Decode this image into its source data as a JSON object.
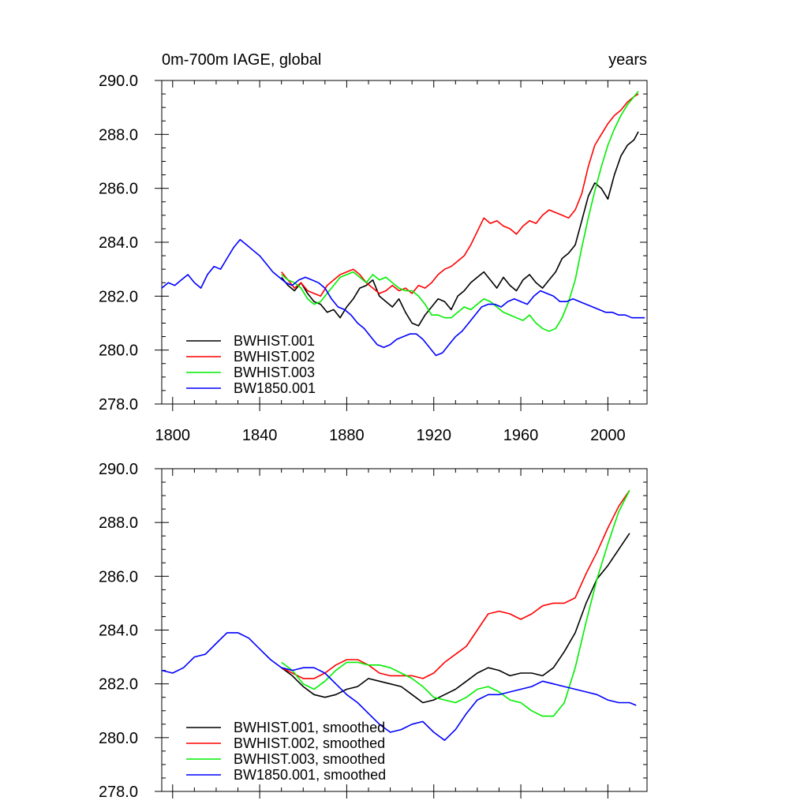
{
  "chart_data": [
    {
      "type": "line",
      "title_left": "0m-700m IAGE, global",
      "title_right": "years",
      "xlim": [
        1795,
        2018
      ],
      "ylim": [
        278.0,
        290.0
      ],
      "x_ticks": [
        "1800",
        "1840",
        "1880",
        "1920",
        "1960",
        "2000"
      ],
      "y_ticks": [
        "278.0",
        "280.0",
        "282.0",
        "284.0",
        "286.0",
        "288.0",
        "290.0"
      ],
      "grid": false,
      "legend_position": "bottom-left",
      "series": [
        {
          "name": "BWHIST.001",
          "color": "#000000",
          "x": [
            1850,
            1853,
            1856,
            1859,
            1862,
            1865,
            1868,
            1871,
            1874,
            1877,
            1880,
            1883,
            1886,
            1889,
            1892,
            1895,
            1898,
            1901,
            1904,
            1907,
            1910,
            1913,
            1916,
            1919,
            1922,
            1925,
            1928,
            1931,
            1934,
            1937,
            1940,
            1943,
            1946,
            1949,
            1952,
            1955,
            1958,
            1961,
            1964,
            1967,
            1970,
            1973,
            1976,
            1979,
            1982,
            1985,
            1988,
            1991,
            1994,
            1997,
            2000,
            2003,
            2006,
            2009,
            2012,
            2014
          ],
          "y": [
            282.7,
            282.4,
            282.2,
            282.5,
            282.1,
            281.8,
            281.7,
            281.4,
            281.5,
            281.2,
            281.6,
            281.9,
            282.3,
            282.4,
            282.6,
            282.0,
            281.8,
            281.6,
            281.9,
            281.4,
            281.0,
            280.9,
            281.3,
            281.6,
            281.9,
            281.8,
            281.5,
            282.0,
            282.2,
            282.5,
            282.7,
            282.9,
            282.6,
            282.3,
            282.7,
            282.4,
            282.2,
            282.6,
            282.8,
            282.5,
            282.3,
            282.6,
            282.9,
            283.4,
            283.6,
            283.9,
            284.8,
            285.7,
            286.2,
            286.0,
            285.6,
            286.5,
            287.2,
            287.6,
            287.8,
            288.1
          ]
        },
        {
          "name": "BWHIST.002",
          "color": "#ff0000",
          "x": [
            1850,
            1853,
            1856,
            1859,
            1862,
            1865,
            1868,
            1871,
            1874,
            1877,
            1880,
            1883,
            1886,
            1889,
            1892,
            1895,
            1898,
            1901,
            1904,
            1907,
            1910,
            1913,
            1916,
            1919,
            1922,
            1925,
            1928,
            1931,
            1934,
            1937,
            1940,
            1943,
            1946,
            1949,
            1952,
            1955,
            1958,
            1961,
            1964,
            1967,
            1970,
            1973,
            1976,
            1979,
            1982,
            1985,
            1988,
            1991,
            1994,
            1997,
            2000,
            2003,
            2006,
            2009,
            2012,
            2014
          ],
          "y": [
            282.9,
            282.6,
            282.3,
            282.5,
            282.2,
            282.1,
            282.0,
            282.4,
            282.6,
            282.8,
            282.9,
            283.0,
            282.8,
            282.5,
            282.3,
            282.1,
            282.2,
            282.4,
            282.2,
            282.3,
            282.1,
            282.4,
            282.3,
            282.5,
            282.8,
            283.0,
            283.1,
            283.3,
            283.5,
            283.9,
            284.4,
            284.9,
            284.7,
            284.8,
            284.6,
            284.5,
            284.3,
            284.6,
            284.8,
            284.7,
            285.0,
            285.2,
            285.1,
            285.0,
            284.9,
            285.2,
            285.8,
            286.8,
            287.6,
            288.0,
            288.4,
            288.7,
            288.9,
            289.2,
            289.4,
            289.5
          ]
        },
        {
          "name": "BWHIST.003",
          "color": "#00ee00",
          "x": [
            1850,
            1853,
            1856,
            1859,
            1862,
            1865,
            1868,
            1871,
            1874,
            1877,
            1880,
            1883,
            1886,
            1889,
            1892,
            1895,
            1898,
            1901,
            1904,
            1907,
            1910,
            1913,
            1916,
            1919,
            1922,
            1925,
            1928,
            1931,
            1934,
            1937,
            1940,
            1943,
            1946,
            1949,
            1952,
            1955,
            1958,
            1961,
            1964,
            1967,
            1970,
            1973,
            1976,
            1979,
            1982,
            1985,
            1988,
            1991,
            1994,
            1997,
            2000,
            2003,
            2006,
            2009,
            2012,
            2014
          ],
          "y": [
            282.8,
            282.6,
            282.5,
            282.3,
            281.9,
            281.7,
            281.8,
            282.1,
            282.4,
            282.7,
            282.8,
            282.9,
            282.7,
            282.5,
            282.8,
            282.6,
            282.7,
            282.5,
            282.3,
            282.2,
            282.2,
            282.0,
            281.7,
            281.3,
            281.3,
            281.2,
            281.2,
            281.4,
            281.6,
            281.5,
            281.7,
            281.9,
            281.8,
            281.6,
            281.4,
            281.3,
            281.2,
            281.1,
            281.3,
            281.0,
            280.8,
            280.7,
            280.8,
            281.2,
            281.8,
            282.6,
            283.8,
            284.9,
            285.9,
            286.8,
            287.6,
            288.2,
            288.7,
            289.1,
            289.4,
            289.6
          ]
        },
        {
          "name": "BW1850.001",
          "color": "#0000ff",
          "x": [
            1795,
            1798,
            1801,
            1804,
            1807,
            1810,
            1813,
            1816,
            1819,
            1822,
            1825,
            1828,
            1831,
            1834,
            1837,
            1840,
            1843,
            1846,
            1849,
            1852,
            1855,
            1858,
            1861,
            1864,
            1867,
            1870,
            1873,
            1876,
            1879,
            1882,
            1885,
            1888,
            1891,
            1894,
            1897,
            1900,
            1903,
            1906,
            1909,
            1912,
            1915,
            1918,
            1921,
            1924,
            1927,
            1930,
            1933,
            1936,
            1939,
            1942,
            1945,
            1948,
            1951,
            1954,
            1957,
            1960,
            1963,
            1966,
            1969,
            1972,
            1975,
            1978,
            1981,
            1984,
            1987,
            1990,
            1993,
            1996,
            1999,
            2002,
            2005,
            2008,
            2011,
            2014,
            2017
          ],
          "y": [
            282.3,
            282.5,
            282.4,
            282.6,
            282.8,
            282.5,
            282.3,
            282.8,
            283.1,
            283.0,
            283.4,
            283.8,
            284.1,
            283.9,
            283.7,
            283.5,
            283.2,
            282.9,
            282.7,
            282.5,
            282.4,
            282.6,
            282.7,
            282.6,
            282.5,
            282.3,
            281.9,
            281.6,
            281.5,
            281.3,
            281.0,
            280.8,
            280.5,
            280.2,
            280.1,
            280.2,
            280.4,
            280.5,
            280.6,
            280.6,
            280.4,
            280.1,
            279.8,
            279.9,
            280.2,
            280.5,
            280.7,
            281.0,
            281.3,
            281.6,
            281.7,
            281.7,
            281.6,
            281.8,
            281.9,
            281.8,
            281.7,
            282.0,
            282.2,
            282.1,
            282.0,
            281.8,
            281.8,
            281.9,
            281.8,
            281.7,
            281.6,
            281.5,
            281.4,
            281.4,
            281.3,
            281.3,
            281.2,
            281.2,
            281.2
          ]
        }
      ]
    },
    {
      "type": "line",
      "title_left": "",
      "title_right": "",
      "xlim": [
        1795,
        2018
      ],
      "ylim": [
        278.0,
        290.0
      ],
      "x_ticks": [],
      "y_ticks": [
        "278.0",
        "280.0",
        "282.0",
        "284.0",
        "286.0",
        "288.0",
        "290.0"
      ],
      "grid": false,
      "legend_position": "bottom-left",
      "series": [
        {
          "name": "BWHIST.001, smoothed",
          "color": "#000000",
          "x": [
            1850,
            1855,
            1860,
            1865,
            1870,
            1875,
            1880,
            1885,
            1890,
            1895,
            1900,
            1905,
            1910,
            1915,
            1920,
            1925,
            1930,
            1935,
            1940,
            1945,
            1950,
            1955,
            1960,
            1965,
            1970,
            1975,
            1980,
            1985,
            1990,
            1995,
            2000,
            2005,
            2010
          ],
          "y": [
            282.6,
            282.3,
            281.9,
            281.6,
            281.5,
            281.6,
            281.8,
            281.9,
            282.2,
            282.1,
            282.0,
            281.9,
            281.6,
            281.3,
            281.4,
            281.6,
            281.8,
            282.1,
            282.4,
            282.6,
            282.5,
            282.3,
            282.4,
            282.4,
            282.3,
            282.6,
            283.2,
            283.9,
            285.0,
            285.9,
            286.4,
            287.0,
            287.6
          ]
        },
        {
          "name": "BWHIST.002, smoothed",
          "color": "#ff0000",
          "x": [
            1850,
            1855,
            1860,
            1865,
            1870,
            1875,
            1880,
            1885,
            1890,
            1895,
            1900,
            1905,
            1910,
            1915,
            1920,
            1925,
            1930,
            1935,
            1940,
            1945,
            1950,
            1955,
            1960,
            1965,
            1970,
            1975,
            1980,
            1985,
            1990,
            1995,
            2000,
            2005,
            2010
          ],
          "y": [
            282.6,
            282.4,
            282.2,
            282.2,
            282.4,
            282.7,
            282.9,
            282.9,
            282.7,
            282.4,
            282.3,
            282.3,
            282.3,
            282.2,
            282.4,
            282.8,
            283.1,
            283.4,
            284.0,
            284.6,
            284.7,
            284.6,
            284.4,
            284.6,
            284.9,
            285.0,
            285.0,
            285.2,
            286.1,
            286.9,
            287.8,
            288.6,
            289.2
          ]
        },
        {
          "name": "BWHIST.003, smoothed",
          "color": "#00ee00",
          "x": [
            1850,
            1855,
            1860,
            1865,
            1870,
            1875,
            1880,
            1885,
            1890,
            1895,
            1900,
            1905,
            1910,
            1915,
            1920,
            1925,
            1930,
            1935,
            1940,
            1945,
            1950,
            1955,
            1960,
            1965,
            1970,
            1975,
            1980,
            1985,
            1990,
            1995,
            2000,
            2005,
            2010
          ],
          "y": [
            282.8,
            282.5,
            282.0,
            281.8,
            282.1,
            282.5,
            282.8,
            282.8,
            282.7,
            282.7,
            282.6,
            282.4,
            282.2,
            281.9,
            281.5,
            281.4,
            281.3,
            281.5,
            281.8,
            281.9,
            281.7,
            281.4,
            281.3,
            281.0,
            280.8,
            280.8,
            281.3,
            282.6,
            284.3,
            285.9,
            287.2,
            288.4,
            289.2
          ]
        },
        {
          "name": "BW1850.001, smoothed",
          "color": "#0000ff",
          "x": [
            1795,
            1800,
            1805,
            1810,
            1815,
            1820,
            1825,
            1830,
            1835,
            1840,
            1845,
            1850,
            1855,
            1860,
            1865,
            1870,
            1875,
            1880,
            1885,
            1890,
            1895,
            1900,
            1905,
            1910,
            1915,
            1920,
            1925,
            1930,
            1935,
            1940,
            1945,
            1950,
            1955,
            1960,
            1965,
            1970,
            1975,
            1980,
            1985,
            1990,
            1995,
            2000,
            2005,
            2010,
            2013
          ],
          "y": [
            282.5,
            282.4,
            282.6,
            283.0,
            283.1,
            283.5,
            283.9,
            283.9,
            283.7,
            283.3,
            282.9,
            282.6,
            282.5,
            282.6,
            282.6,
            282.4,
            282.0,
            281.6,
            281.3,
            280.9,
            280.5,
            280.2,
            280.3,
            280.5,
            280.6,
            280.2,
            279.9,
            280.3,
            280.9,
            281.4,
            281.6,
            281.6,
            281.7,
            281.8,
            281.9,
            282.1,
            282.0,
            281.9,
            281.8,
            281.7,
            281.6,
            281.4,
            281.3,
            281.3,
            281.2
          ]
        }
      ]
    }
  ]
}
